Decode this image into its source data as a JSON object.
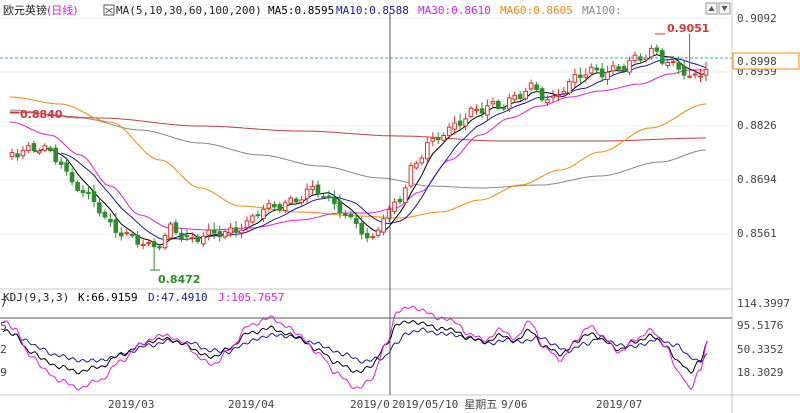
{
  "header": {
    "title": "欧元英镑",
    "period": "(日线)",
    "ma_params": "MA(5,10,30,60,100,200)",
    "ma5": "MA5:0.8595",
    "ma10": "MA10:0.8588",
    "ma30": "MA30:0.8610",
    "ma60": "MA60:0.8605",
    "ma100": "MA100:"
  },
  "kdj_header": {
    "params": "KDJ(9,3,3)",
    "k": "K:66.9159",
    "d": "D:47.4910",
    "j": "J:105.7657"
  },
  "price_axis": [
    "0.9092",
    "0.8959",
    "0.8826",
    "0.8694",
    "0.8561"
  ],
  "current_price": "0.8998",
  "high_label": "0.9051",
  "low_label": "0.8472",
  "left_label": "0.8840",
  "kdj_axis": [
    "114.3997",
    "95.5176",
    "50.3352",
    "18.3029"
  ],
  "kdj_left_axis": [
    "7",
    "5",
    "2",
    "9"
  ],
  "date_labels": [
    "2019/03",
    "2019/04",
    "2019/0",
    "9/06",
    "2019/07"
  ],
  "crosshair_date": "2019/05/10",
  "crosshair_weekday": "星期五",
  "colors": {
    "up": "#e03030",
    "down": "#2e8b2e",
    "ma5": "#000000",
    "ma10": "#1a1aa0",
    "ma30": "#e020e0",
    "ma60": "#f08c10",
    "ma100": "#888888",
    "ma200": "#c04040",
    "k": "#000000",
    "d": "#1a1aa0",
    "j": "#e020e0"
  },
  "chart_data": {
    "type": "candlestick",
    "y_range": [
      0.845,
      0.911
    ],
    "y_ticks": [
      0.9092,
      0.8959,
      0.8826,
      0.8694,
      0.8561
    ],
    "x_labels": [
      "2019/03",
      "2019/04",
      "2019/0",
      "9/06",
      "2019/07"
    ],
    "series": [
      {
        "name": "MA5",
        "last": 0.8595
      },
      {
        "name": "MA10",
        "last": 0.8588
      },
      {
        "name": "MA30",
        "last": 0.861
      },
      {
        "name": "MA60",
        "last": 0.8605
      }
    ],
    "kdj": {
      "K": 66.9159,
      "D": 47.491,
      "J": 105.7657
    }
  }
}
